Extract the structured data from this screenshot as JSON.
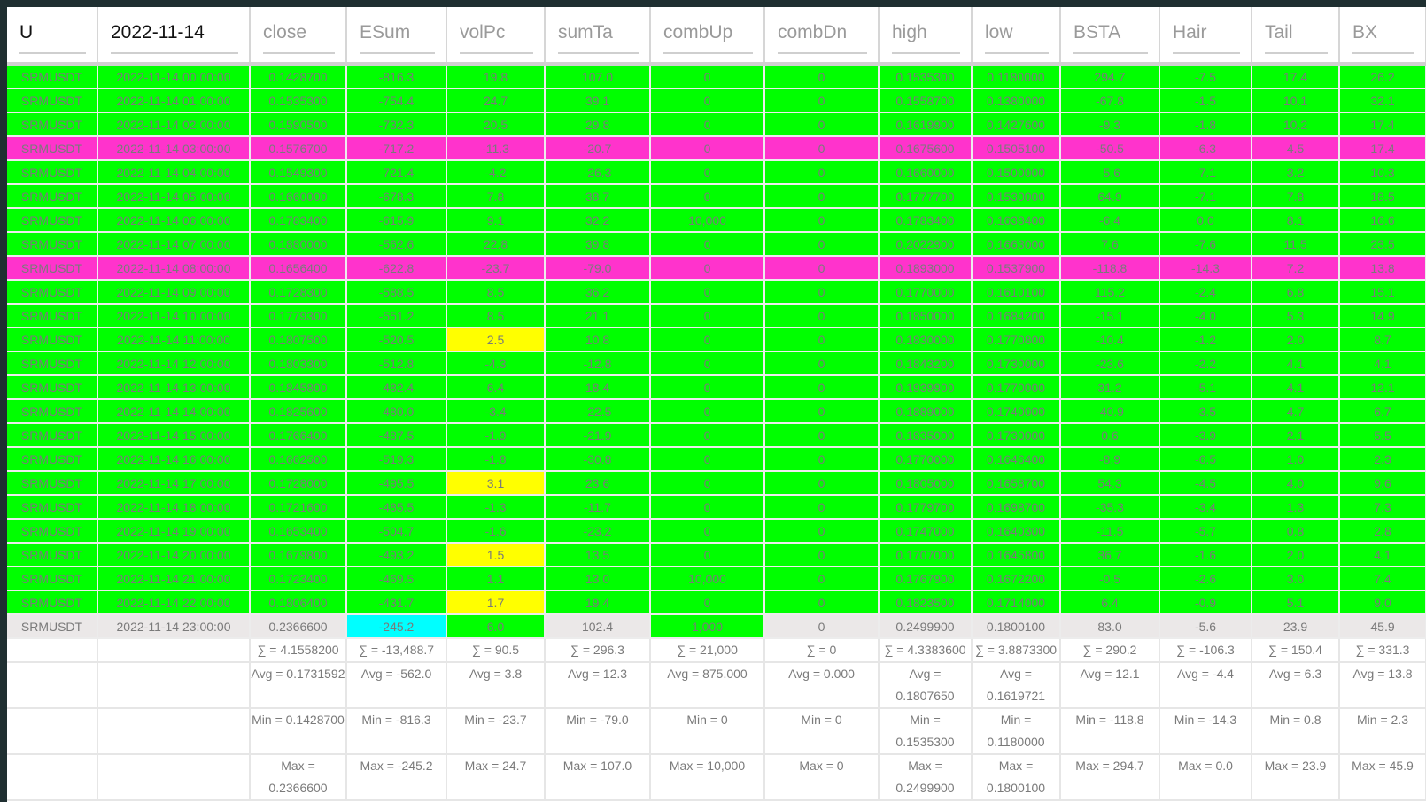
{
  "colors": {
    "up_row": "#00ff00",
    "down_row": "#ff33cc",
    "highlight_yellow": "#ffff00",
    "highlight_cyan": "#00ffff",
    "current_row": "#ebe8e8"
  },
  "columns": [
    "U",
    "2022-11-14",
    "close",
    "ESum",
    "volPc",
    "sumTa",
    "combUp",
    "combDn",
    "high",
    "low",
    "BSTA",
    "Hair",
    "Tail",
    "BX"
  ],
  "rows": [
    {
      "type": "up",
      "cells": [
        "SRMUSDT",
        "2022-11-14 00:00:00",
        "0.1428700",
        "-816.3",
        "19.8",
        "107.0",
        "0",
        "0",
        "0.1535300",
        "0.1180000",
        "294.7",
        "-7.5",
        "17.4",
        "26.2"
      ]
    },
    {
      "type": "up",
      "cells": [
        "SRMUSDT",
        "2022-11-14 01:00:00",
        "0.1535300",
        "-754.4",
        "24.7",
        "39.1",
        "0",
        "0",
        "0.1558700",
        "0.1380000",
        "-67.8",
        "-1.5",
        "10.1",
        "32.1"
      ]
    },
    {
      "type": "up",
      "cells": [
        "SRMUSDT",
        "2022-11-14 02:00:00",
        "0.1590500",
        "-732.3",
        "20.5",
        "29.8",
        "0",
        "0",
        "0.1619900",
        "0.1427600",
        "-9.3",
        "-1.8",
        "10.2",
        "17.4"
      ]
    },
    {
      "type": "down",
      "cells": [
        "SRMUSDT",
        "2022-11-14 03:00:00",
        "0.1576700",
        "-717.2",
        "-11.3",
        "-20.7",
        "0",
        "0",
        "0.1675600",
        "0.1505100",
        "-50.5",
        "-6.3",
        "4.5",
        "17.4"
      ]
    },
    {
      "type": "up",
      "cells": [
        "SRMUSDT",
        "2022-11-14 04:00:00",
        "0.1549300",
        "-721.4",
        "-4.2",
        "-26.3",
        "0",
        "0",
        "0.1660000",
        "0.1500000",
        "-5.6",
        "-7.1",
        "3.2",
        "10.3"
      ]
    },
    {
      "type": "up",
      "cells": [
        "SRMUSDT",
        "2022-11-14 05:00:00",
        "0.1660000",
        "-678.3",
        "7.8",
        "38.7",
        "0",
        "0",
        "0.1777700",
        "0.1530000",
        "64.9",
        "-7.1",
        "7.8",
        "18.5"
      ]
    },
    {
      "type": "up",
      "cells": [
        "SRMUSDT",
        "2022-11-14 06:00:00",
        "0.1783400",
        "-615.9",
        "9.1",
        "32.2",
        "10,000",
        "0",
        "0.1783400",
        "0.1638400",
        "-6.4",
        "0.0",
        "8.1",
        "16.6"
      ]
    },
    {
      "type": "up",
      "cells": [
        "SRMUSDT",
        "2022-11-14 07:00:00",
        "0.1880000",
        "-562.6",
        "22.8",
        "39.8",
        "0",
        "0",
        "0.2022900",
        "0.1663000",
        "7.6",
        "-7.6",
        "11.5",
        "23.5"
      ]
    },
    {
      "type": "down",
      "cells": [
        "SRMUSDT",
        "2022-11-14 08:00:00",
        "0.1656400",
        "-622.8",
        "-23.7",
        "-79.0",
        "0",
        "0",
        "0.1893000",
        "0.1537900",
        "-118.8",
        "-14.3",
        "7.2",
        "13.8"
      ]
    },
    {
      "type": "up",
      "cells": [
        "SRMUSDT",
        "2022-11-14 09:00:00",
        "0.1728300",
        "-588.5",
        "8.5",
        "36.2",
        "0",
        "0",
        "0.1770000",
        "0.1610100",
        "115.2",
        "-2.4",
        "6.8",
        "15.1"
      ]
    },
    {
      "type": "up",
      "cells": [
        "SRMUSDT",
        "2022-11-14 10:00:00",
        "0.1779300",
        "-551.2",
        "8.5",
        "21.1",
        "0",
        "0",
        "0.1850000",
        "0.1684200",
        "-15.1",
        "-4.0",
        "5.3",
        "14.9"
      ]
    },
    {
      "type": "up",
      "highlight": {
        "4": "yellow"
      },
      "cells": [
        "SRMUSDT",
        "2022-11-14 11:00:00",
        "0.1807500",
        "-520.5",
        "2.5",
        "10.8",
        "0",
        "0",
        "0.1830000",
        "0.1770800",
        "-10.4",
        "-1.2",
        "2.0",
        "8.7"
      ]
    },
    {
      "type": "up",
      "cells": [
        "SRMUSDT",
        "2022-11-14 12:00:00",
        "0.1803300",
        "-512.8",
        "-4.3",
        "-12.8",
        "0",
        "0",
        "0.1843200",
        "0.1730000",
        "-23.6",
        "-2.2",
        "4.1",
        "4.1"
      ]
    },
    {
      "type": "up",
      "cells": [
        "SRMUSDT",
        "2022-11-14 13:00:00",
        "0.1845800",
        "-482.4",
        "6.4",
        "18.4",
        "0",
        "0",
        "0.1939900",
        "0.1770000",
        "31.2",
        "-5.1",
        "4.1",
        "12.1"
      ]
    },
    {
      "type": "up",
      "cells": [
        "SRMUSDT",
        "2022-11-14 14:00:00",
        "0.1825600",
        "-480.0",
        "-3.4",
        "-22.5",
        "0",
        "0",
        "0.1889000",
        "0.1740000",
        "-40.9",
        "-3.5",
        "4.7",
        "6.7"
      ]
    },
    {
      "type": "up",
      "cells": [
        "SRMUSDT",
        "2022-11-14 15:00:00",
        "0.1766400",
        "-487.5",
        "-1.9",
        "-21.9",
        "0",
        "0",
        "0.1835000",
        "0.1730000",
        "0.6",
        "-3.9",
        "2.1",
        "5.5"
      ]
    },
    {
      "type": "up",
      "cells": [
        "SRMUSDT",
        "2022-11-14 16:00:00",
        "0.1662500",
        "-519.3",
        "-1.8",
        "-30.8",
        "0",
        "0",
        "0.1770000",
        "0.1646400",
        "-8.9",
        "-6.5",
        "1.0",
        "2.3"
      ]
    },
    {
      "type": "up",
      "highlight": {
        "4": "yellow"
      },
      "cells": [
        "SRMUSDT",
        "2022-11-14 17:00:00",
        "0.1728000",
        "-495.5",
        "3.1",
        "23.6",
        "0",
        "0",
        "0.1805000",
        "0.1658700",
        "54.3",
        "-4.5",
        "4.0",
        "9.6"
      ]
    },
    {
      "type": "up",
      "cells": [
        "SRMUSDT",
        "2022-11-14 18:00:00",
        "0.1721600",
        "-485.5",
        "-1.3",
        "-11.7",
        "0",
        "0",
        "0.1779700",
        "0.1698700",
        "-35.3",
        "-3.4",
        "1.3",
        "7.3"
      ]
    },
    {
      "type": "up",
      "cells": [
        "SRMUSDT",
        "2022-11-14 19:00:00",
        "0.1653400",
        "-504.7",
        "-1.6",
        "-23.2",
        "0",
        "0",
        "0.1747000",
        "0.1640300",
        "-11.5",
        "-5.7",
        "0.8",
        "2.8"
      ]
    },
    {
      "type": "up",
      "highlight": {
        "4": "yellow"
      },
      "cells": [
        "SRMUSDT",
        "2022-11-14 20:00:00",
        "0.1679800",
        "-493.2",
        "1.5",
        "13.5",
        "0",
        "0",
        "0.1707000",
        "0.1645800",
        "36.7",
        "-1.6",
        "2.0",
        "4.1"
      ]
    },
    {
      "type": "up",
      "cells": [
        "SRMUSDT",
        "2022-11-14 21:00:00",
        "0.1723400",
        "-469.5",
        "1.1",
        "13.0",
        "10,000",
        "0",
        "0.1767900",
        "0.1672200",
        "-0.5",
        "-2.6",
        "3.0",
        "7.4"
      ]
    },
    {
      "type": "up",
      "highlight": {
        "4": "yellow"
      },
      "cells": [
        "SRMUSDT",
        "2022-11-14 22:00:00",
        "0.1806400",
        "-431.7",
        "1.7",
        "19.4",
        "0",
        "0",
        "0.1823500",
        "0.1714000",
        "6.4",
        "-0.9",
        "5.1",
        "9.0"
      ]
    },
    {
      "type": "current",
      "highlight": {
        "3": "cyan",
        "4": "green",
        "6": "green"
      },
      "cells": [
        "SRMUSDT",
        "2022-11-14 23:00:00",
        "0.2366600",
        "-245.2",
        "6.0",
        "102.4",
        "1,000",
        "0",
        "0.2499900",
        "0.1800100",
        "83.0",
        "-5.6",
        "23.9",
        "45.9"
      ]
    }
  ],
  "footer": {
    "sum": [
      "",
      "",
      "∑ = 4.1558200",
      "∑ = -13,488.7",
      "∑ = 90.5",
      "∑ = 296.3",
      "∑ = 21,000",
      "∑ = 0",
      "∑ = 4.3383600",
      "∑ = 3.8873300",
      "∑ = 290.2",
      "∑ = -106.3",
      "∑ = 150.4",
      "∑ = 331.3"
    ],
    "avg": [
      "",
      "",
      "Avg = 0.1731592",
      "Avg = -562.0",
      "Avg = 3.8",
      "Avg = 12.3",
      "Avg = 875.000",
      "Avg = 0.000",
      "Avg = 0.1807650",
      "Avg = 0.1619721",
      "Avg = 12.1",
      "Avg = -4.4",
      "Avg = 6.3",
      "Avg = 13.8"
    ],
    "min": [
      "",
      "",
      "Min = 0.1428700",
      "Min = -816.3",
      "Min = -23.7",
      "Min = -79.0",
      "Min = 0",
      "Min = 0",
      "Min = 0.1535300",
      "Min = 0.1180000",
      "Min = -118.8",
      "Min = -14.3",
      "Min = 0.8",
      "Min = 2.3"
    ],
    "max": [
      "",
      "",
      "Max = 0.2366600",
      "Max = -245.2",
      "Max = 24.7",
      "Max = 107.0",
      "Max = 10,000",
      "Max = 0",
      "Max = 0.2499900",
      "Max = 0.1800100",
      "Max = 294.7",
      "Max = 0.0",
      "Max = 23.9",
      "Max = 45.9"
    ]
  }
}
